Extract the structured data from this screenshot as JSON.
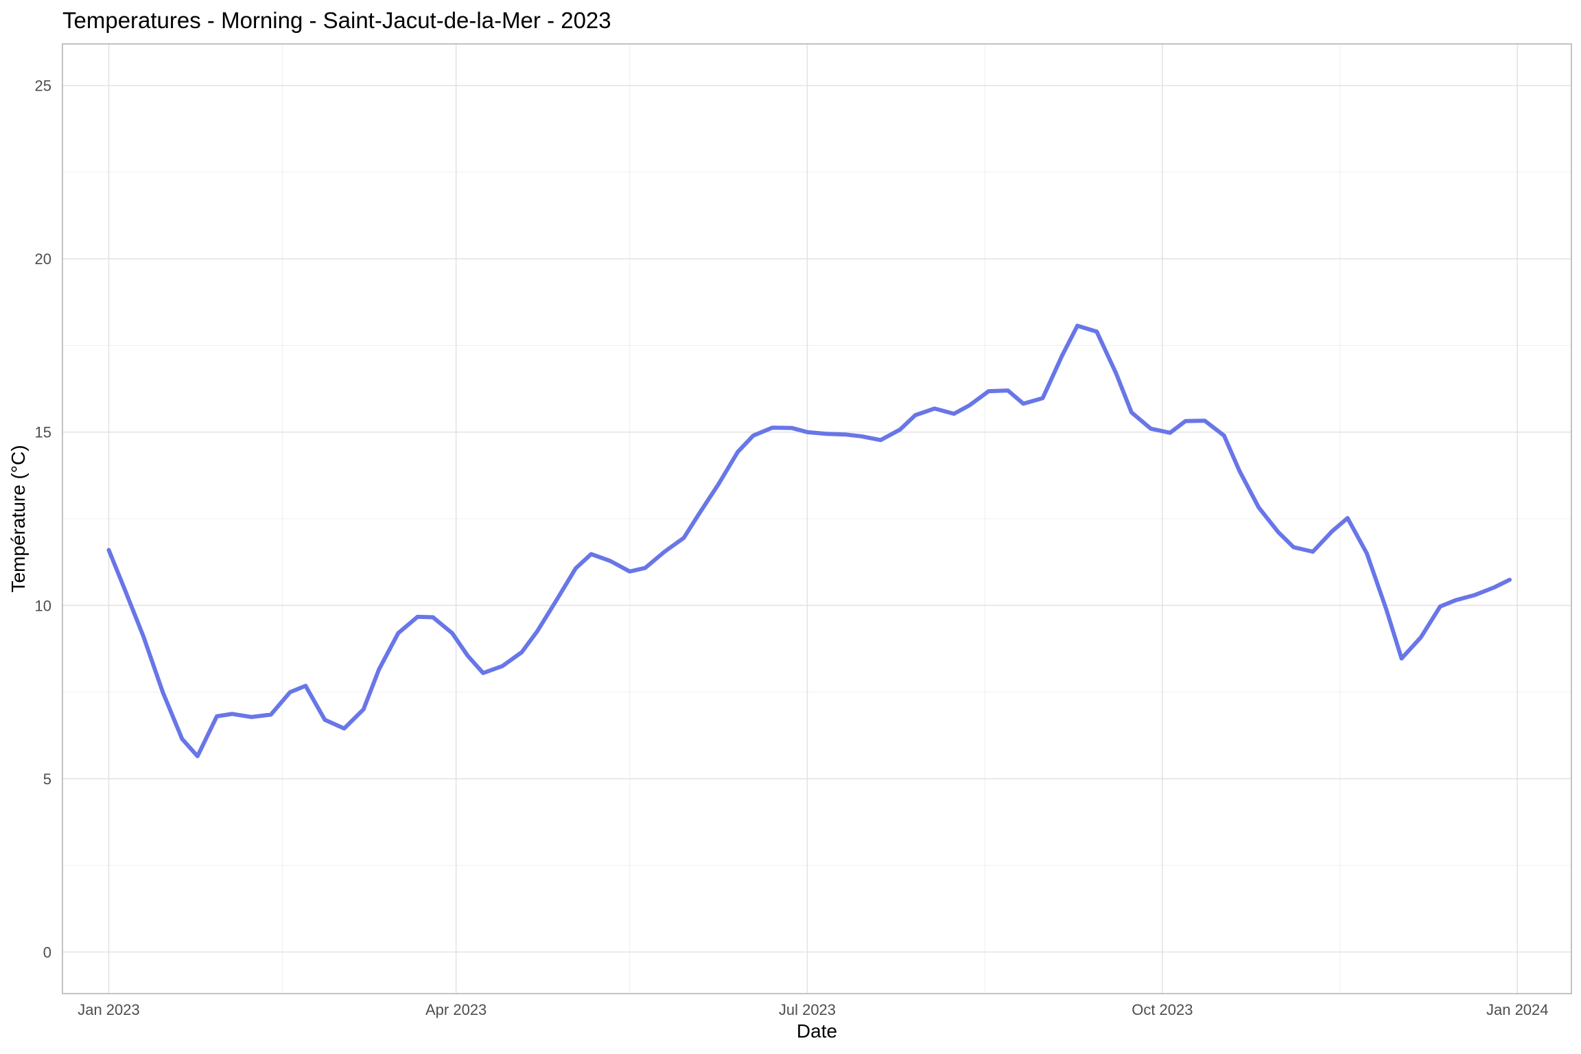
{
  "chart_data": {
    "type": "line",
    "title": "Temperatures - Morning - Saint-Jacut-de-la-Mer - 2023",
    "xlabel": "Date",
    "ylabel": "Température (°C)",
    "xlim": [
      "2022-12-20",
      "2024-01-15"
    ],
    "ylim": [
      -1.2,
      26.2
    ],
    "x_ticks": [
      {
        "value": "2023-01-01",
        "label": "Jan 2023"
      },
      {
        "value": "2023-04-01",
        "label": "Apr 2023"
      },
      {
        "value": "2023-07-01",
        "label": "Jul 2023"
      },
      {
        "value": "2023-10-01",
        "label": "Oct 2023"
      },
      {
        "value": "2024-01-01",
        "label": "Jan 2024"
      }
    ],
    "x_minor_ticks": [
      "2023-02-15",
      "2023-05-16",
      "2023-08-16",
      "2023-11-16"
    ],
    "y_ticks": [
      0,
      5,
      10,
      15,
      20,
      25
    ],
    "y_minor_ticks": [
      2.5,
      7.5,
      12.5,
      17.5,
      22.5
    ],
    "grid": true,
    "legend": "none",
    "colors": {
      "line": "#6876e8"
    },
    "series": [
      {
        "x": [
          "2023-01-01",
          "2023-01-05",
          "2023-01-10",
          "2023-01-15",
          "2023-01-20",
          "2023-01-24",
          "2023-01-29",
          "2023-02-02",
          "2023-02-07",
          "2023-02-12",
          "2023-02-17",
          "2023-02-21",
          "2023-02-26",
          "2023-03-03",
          "2023-03-08",
          "2023-03-12",
          "2023-03-17",
          "2023-03-22",
          "2023-03-26",
          "2023-03-31",
          "2023-04-04",
          "2023-04-08",
          "2023-04-13",
          "2023-04-18",
          "2023-04-22",
          "2023-04-27",
          "2023-05-02",
          "2023-05-06",
          "2023-05-11",
          "2023-05-16",
          "2023-05-20",
          "2023-05-25",
          "2023-05-30",
          "2023-06-03",
          "2023-06-08",
          "2023-06-13",
          "2023-06-17",
          "2023-06-22",
          "2023-06-27",
          "2023-07-01",
          "2023-07-06",
          "2023-07-11",
          "2023-07-15",
          "2023-07-20",
          "2023-07-25",
          "2023-07-29",
          "2023-08-03",
          "2023-08-08",
          "2023-08-12",
          "2023-08-17",
          "2023-08-22",
          "2023-08-26",
          "2023-08-31",
          "2023-09-05",
          "2023-09-09",
          "2023-09-14",
          "2023-09-19",
          "2023-09-23",
          "2023-09-28",
          "2023-10-03",
          "2023-10-07",
          "2023-10-12",
          "2023-10-17",
          "2023-10-21",
          "2023-10-26",
          "2023-10-31",
          "2023-11-04",
          "2023-11-09",
          "2023-11-14",
          "2023-11-18",
          "2023-11-23",
          "2023-11-28",
          "2023-12-02",
          "2023-12-07",
          "2023-12-12",
          "2023-12-16",
          "2023-12-21",
          "2023-12-26",
          "2023-12-30"
        ],
        "y": [
          11.6,
          10.5,
          9.1,
          7.5,
          6.15,
          5.65,
          6.8,
          6.87,
          6.78,
          6.85,
          7.5,
          7.68,
          6.7,
          6.45,
          7.0,
          8.15,
          9.2,
          9.67,
          9.66,
          9.2,
          8.55,
          8.05,
          8.25,
          8.65,
          9.25,
          10.15,
          11.07,
          11.48,
          11.28,
          10.98,
          11.08,
          11.55,
          11.95,
          12.65,
          13.5,
          14.43,
          14.9,
          15.13,
          15.12,
          15.0,
          14.95,
          14.93,
          14.88,
          14.77,
          15.07,
          15.49,
          15.68,
          15.53,
          15.77,
          16.18,
          16.2,
          15.82,
          15.98,
          17.2,
          18.07,
          17.9,
          16.7,
          15.57,
          15.1,
          14.98,
          15.32,
          15.33,
          14.9,
          13.88,
          12.82,
          12.12,
          11.68,
          11.55,
          12.14,
          12.52,
          11.5,
          9.9,
          8.47,
          9.08,
          9.97,
          10.15,
          10.3,
          10.52,
          10.74
        ]
      }
    ]
  }
}
